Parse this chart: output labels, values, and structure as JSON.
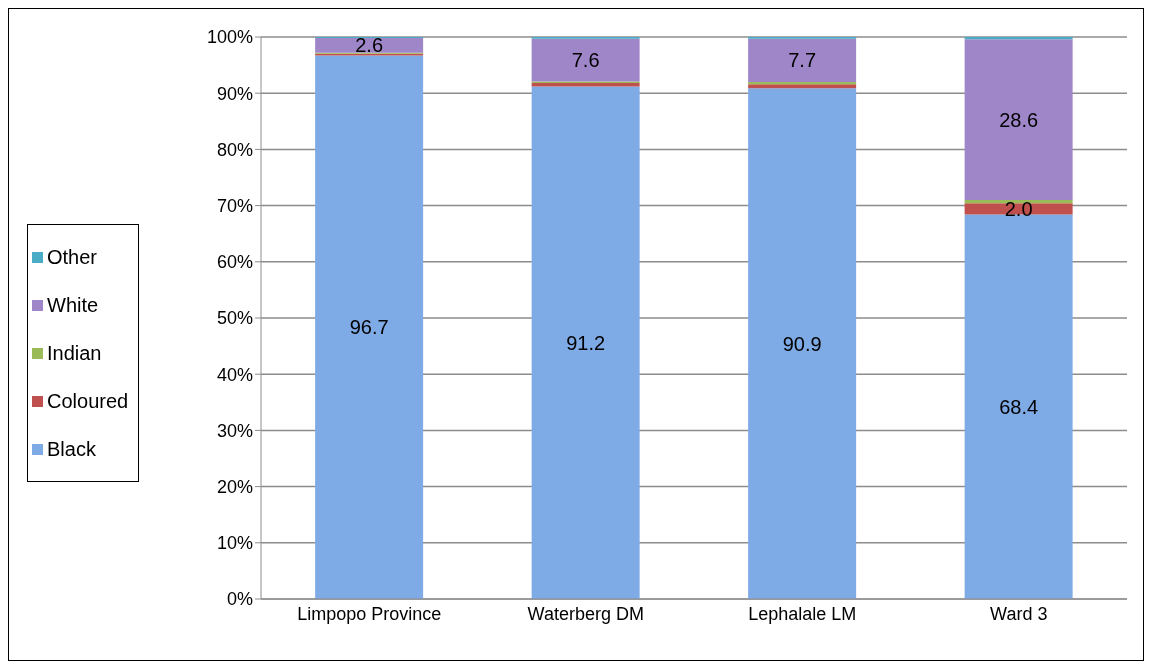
{
  "chart_data": {
    "type": "bar",
    "stacked": true,
    "categories": [
      "Limpopo Province",
      "Waterberg DM",
      "Lephalale LM",
      "Ward 3"
    ],
    "series": [
      {
        "name": "Black",
        "color": "#7eaae6",
        "values": [
          96.7,
          91.2,
          90.9,
          68.4
        ],
        "value_labels": [
          "96.7",
          "91.2",
          "90.9",
          "68.4"
        ]
      },
      {
        "name": "Coloured",
        "color": "#c0504d",
        "values": [
          0.3,
          0.6,
          0.7,
          2.0
        ],
        "value_labels": [
          null,
          null,
          null,
          "2.0"
        ]
      },
      {
        "name": "Indian",
        "color": "#9bbb59",
        "values": [
          0.2,
          0.3,
          0.4,
          0.6
        ]
      },
      {
        "name": "White",
        "color": "#9f86c9",
        "values": [
          2.6,
          7.6,
          7.7,
          28.6
        ],
        "value_labels": [
          "2.6",
          "7.6",
          "7.7",
          "28.6"
        ]
      },
      {
        "name": "Other",
        "color": "#4bacc6",
        "values": [
          0.2,
          0.3,
          0.3,
          0.4
        ]
      }
    ],
    "ylim": [
      0,
      100
    ],
    "yticks": [
      {
        "value": 0,
        "label": "0%"
      },
      {
        "value": 10,
        "label": "10%"
      },
      {
        "value": 20,
        "label": "20%"
      },
      {
        "value": 30,
        "label": "30%"
      },
      {
        "value": 40,
        "label": "40%"
      },
      {
        "value": 50,
        "label": "50%"
      },
      {
        "value": 60,
        "label": "60%"
      },
      {
        "value": 70,
        "label": "70%"
      },
      {
        "value": 80,
        "label": "80%"
      },
      {
        "value": 90,
        "label": "90%"
      },
      {
        "value": 100,
        "label": "100%"
      }
    ],
    "grid": "y",
    "legend": "left"
  }
}
